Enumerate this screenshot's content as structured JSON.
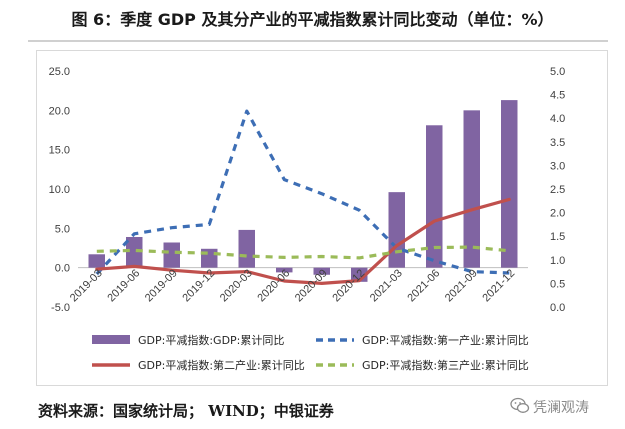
{
  "figure": {
    "title": "图 6：季度 GDP 及其分产业的平减指数累计同比变动（单位：%）",
    "source": "资料来源：国家统计局； WIND；中银证券",
    "watermark": "凭澜观涛",
    "watermark_icon": "wechat-icon"
  },
  "chart_data": {
    "type": "bar+line",
    "categories": [
      "2019-03",
      "2019-06",
      "2019-09",
      "2019-12",
      "2020-03",
      "2020-06",
      "2020-09",
      "2020-12",
      "2021-03",
      "2021-06",
      "2021-09",
      "2021-12"
    ],
    "left_axis": {
      "range": [
        -5,
        25
      ],
      "ticks": [
        "-5.0",
        "0.0",
        "5.0",
        "10.0",
        "15.0",
        "20.0",
        "25.0"
      ]
    },
    "right_axis": {
      "range": [
        0,
        5
      ],
      "ticks": [
        "0.0",
        "0.5",
        "1.0",
        "1.5",
        "2.0",
        "2.5",
        "3.0",
        "3.5",
        "4.0",
        "4.5",
        "5.0"
      ]
    },
    "series": [
      {
        "name": "GDP:平减指数:GDP:累计同比",
        "kind": "bar",
        "axis": "left",
        "color": "#8064a2",
        "values": [
          1.7,
          3.9,
          3.2,
          2.4,
          4.8,
          -0.6,
          -0.9,
          -1.8,
          9.6,
          18.1,
          20.0,
          21.3
        ]
      },
      {
        "name": "GDP:平减指数:第一产业:累计同比",
        "kind": "line",
        "axis": "right",
        "style": "dashed",
        "color": "#3d6eb5",
        "values": [
          0.7,
          1.55,
          1.68,
          1.75,
          4.15,
          2.7,
          2.4,
          2.05,
          1.25,
          0.98,
          0.75,
          0.72
        ]
      },
      {
        "name": "GDP:平减指数:第二产业:累计同比",
        "kind": "line",
        "axis": "right",
        "style": "solid",
        "color": "#c0504d",
        "values": [
          0.8,
          0.86,
          0.78,
          0.72,
          0.75,
          0.55,
          0.5,
          0.56,
          1.3,
          1.82,
          2.06,
          2.28
        ]
      },
      {
        "name": "GDP:平减指数:第三产业:累计同比",
        "kind": "line",
        "axis": "right",
        "style": "dashed",
        "color": "#9bbb59",
        "values": [
          1.18,
          1.2,
          1.16,
          1.14,
          1.08,
          1.05,
          1.07,
          1.04,
          1.17,
          1.26,
          1.27,
          1.19
        ]
      }
    ],
    "legend_position": "bottom"
  }
}
